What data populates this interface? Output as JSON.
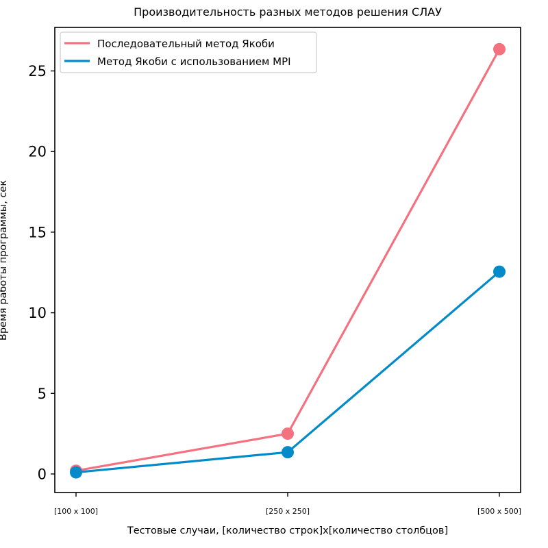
{
  "chart_data": {
    "type": "line",
    "title": "Производительность разных методов решения СЛАУ",
    "xlabel": "Тестовые случаи, [количество строк]x[количество столбцов]",
    "ylabel": "Время работы программы, сек",
    "categories": [
      "[100 x 100]",
      "[250 x 250]",
      "[500 x 500]"
    ],
    "yticks": [
      0,
      5,
      10,
      15,
      20,
      25
    ],
    "ylim": [
      -1.15,
      27.7
    ],
    "grid": false,
    "legend_position": "top-left",
    "series": [
      {
        "name": "Последовательный метод Якоби",
        "values": [
          0.2,
          2.5,
          26.35
        ],
        "color": "#f4717f"
      },
      {
        "name": "Метод Якоби с использованием MPI",
        "values": [
          0.1,
          1.35,
          12.55
        ],
        "color": "#028bc8"
      }
    ]
  }
}
